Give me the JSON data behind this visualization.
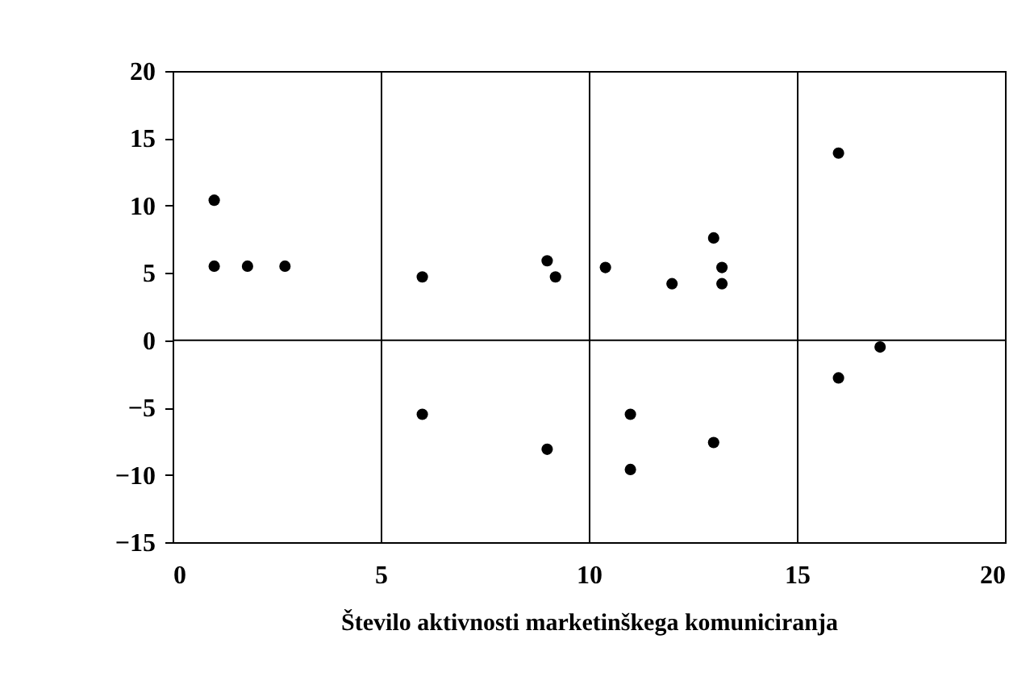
{
  "chart_data": {
    "type": "scatter",
    "xlabel": "Število aktivnosti marketinškega komuniciranja",
    "x": [
      1.0,
      1.0,
      1.8,
      2.7,
      6.0,
      9.0,
      9.2,
      10.4,
      12.0,
      13.0,
      13.2,
      13.2,
      16.0,
      17.0,
      16.0,
      6.0,
      9.0,
      11.0,
      11.0,
      13.0
    ],
    "series": [
      {
        "color": "#000000",
        "values": [
          10.4,
          5.5,
          5.5,
          5.5,
          4.7,
          5.9,
          4.7,
          5.4,
          4.2,
          7.6,
          5.4,
          4.2,
          13.9,
          -0.5,
          -2.8,
          -5.5,
          -8.1,
          -5.5,
          -9.6,
          -7.6
        ]
      }
    ],
    "xlim": [
      0,
      20
    ],
    "xticks": [
      0,
      5,
      10,
      15,
      20
    ],
    "ylim": [
      -15,
      20
    ],
    "yticks": [
      -15,
      -10,
      -5,
      0,
      5,
      10,
      15,
      20
    ],
    "grid": "x",
    "marker": "circle",
    "ref_lines": [
      {
        "axis": "y",
        "value": 0,
        "color": "#000000"
      }
    ]
  }
}
